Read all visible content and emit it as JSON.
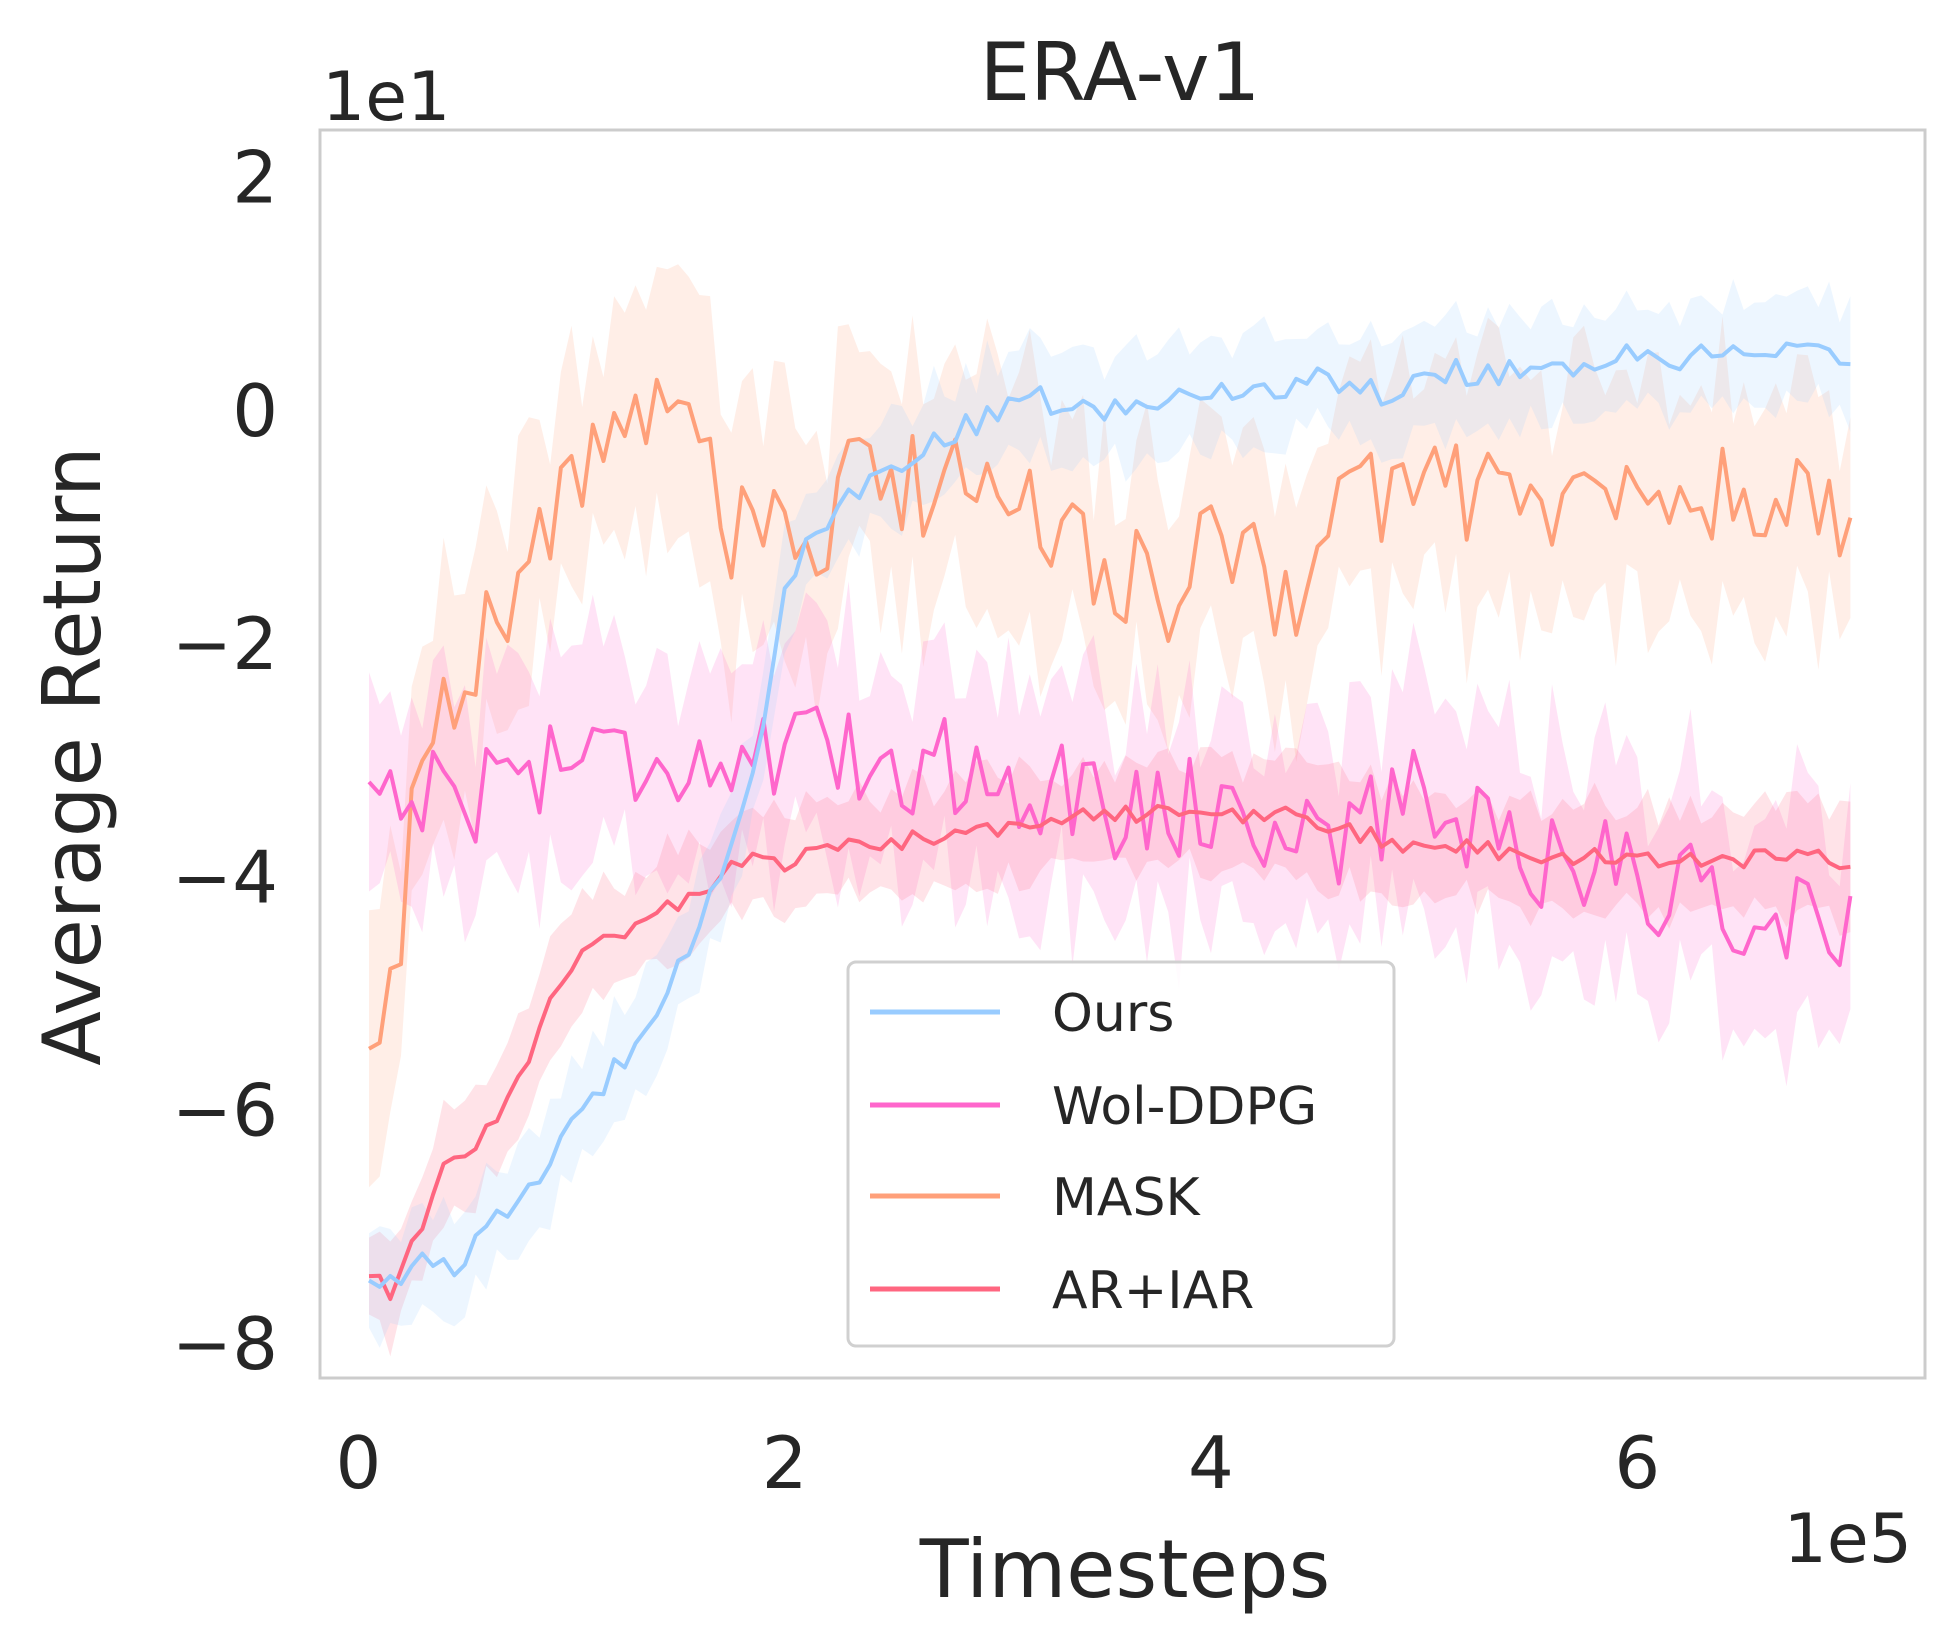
{
  "chart_data": {
    "type": "line",
    "title": "ERA-v1",
    "xlabel": "Timesteps",
    "ylabel": "Average Return",
    "x_multiplier_label": "1e5",
    "y_multiplier_label": "1e1",
    "xlim": [
      -0.18,
      7.35
    ],
    "ylim": [
      -8.3,
      2.4
    ],
    "x_ticks": [
      0,
      2,
      4,
      6
    ],
    "y_ticks": [
      -8,
      -6,
      -4,
      -2,
      0,
      2
    ],
    "x_tick_labels": [
      "0",
      "2",
      "4",
      "6"
    ],
    "y_tick_labels": [
      "−8",
      "−6",
      "−4",
      "−2",
      "0",
      "2"
    ],
    "grid": false,
    "legend_position": "lower-center",
    "x_range": [
      0.05,
      7.0
    ],
    "series": [
      {
        "name": "Ours",
        "color": "#99ccff",
        "band": 0.45,
        "keypoints": [
          [
            0.05,
            -7.45
          ],
          [
            0.3,
            -7.35
          ],
          [
            0.5,
            -7.3
          ],
          [
            0.7,
            -6.85
          ],
          [
            0.9,
            -6.45
          ],
          [
            1.1,
            -5.9
          ],
          [
            1.3,
            -5.4
          ],
          [
            1.5,
            -4.75
          ],
          [
            1.7,
            -4.0
          ],
          [
            1.8,
            -3.4
          ],
          [
            1.9,
            -2.7
          ],
          [
            2.0,
            -1.5
          ],
          [
            2.2,
            -0.95
          ],
          [
            2.4,
            -0.65
          ],
          [
            2.6,
            -0.35
          ],
          [
            2.8,
            -0.2
          ],
          [
            3.0,
            -0.05
          ],
          [
            3.2,
            0.1
          ],
          [
            3.5,
            -0.05
          ],
          [
            3.8,
            0.1
          ],
          [
            4.0,
            0.15
          ],
          [
            4.5,
            0.25
          ],
          [
            4.8,
            0.15
          ],
          [
            5.0,
            0.3
          ],
          [
            5.5,
            0.35
          ],
          [
            6.0,
            0.45
          ],
          [
            6.5,
            0.45
          ],
          [
            7.0,
            0.45
          ]
        ]
      },
      {
        "name": "Wol-DDPG",
        "color": "#ff66cc",
        "band": 0.9,
        "keypoints": [
          [
            0.05,
            -3.2
          ],
          [
            0.5,
            -3.3
          ],
          [
            1.0,
            -2.9
          ],
          [
            1.5,
            -3.0
          ],
          [
            2.0,
            -3.0
          ],
          [
            2.5,
            -3.0
          ],
          [
            3.0,
            -3.1
          ],
          [
            3.5,
            -3.4
          ],
          [
            4.0,
            -3.4
          ],
          [
            4.5,
            -3.7
          ],
          [
            5.0,
            -3.3
          ],
          [
            5.5,
            -3.8
          ],
          [
            6.0,
            -4.0
          ],
          [
            6.5,
            -4.3
          ],
          [
            7.0,
            -4.5
          ]
        ]
      },
      {
        "name": "MASK",
        "color": "#ffa07a",
        "band": 1.0,
        "keypoints": [
          [
            0.05,
            -5.55
          ],
          [
            0.1,
            -5.6
          ],
          [
            0.2,
            -4.6
          ],
          [
            0.25,
            -2.9
          ],
          [
            0.4,
            -2.5
          ],
          [
            0.6,
            -1.9
          ],
          [
            0.8,
            -1.35
          ],
          [
            1.0,
            -0.6
          ],
          [
            1.2,
            -0.1
          ],
          [
            1.4,
            -0.15
          ],
          [
            1.6,
            0.1
          ],
          [
            1.7,
            -1.0
          ],
          [
            1.9,
            -1.0
          ],
          [
            2.1,
            -1.5
          ],
          [
            2.3,
            -0.6
          ],
          [
            2.5,
            -0.6
          ],
          [
            2.7,
            -0.7
          ],
          [
            3.0,
            -0.5
          ],
          [
            3.2,
            -0.9
          ],
          [
            3.4,
            -1.2
          ],
          [
            3.6,
            -1.4
          ],
          [
            3.8,
            -1.6
          ],
          [
            4.0,
            -1.2
          ],
          [
            4.3,
            -1.5
          ],
          [
            4.4,
            -1.5
          ],
          [
            4.6,
            -0.85
          ],
          [
            5.0,
            -0.6
          ],
          [
            5.5,
            -0.8
          ],
          [
            6.0,
            -0.75
          ],
          [
            6.5,
            -0.75
          ],
          [
            7.0,
            -0.9
          ]
        ]
      },
      {
        "name": "AR+IAR",
        "color": "#ff6680",
        "band": 0.45,
        "keypoints": [
          [
            0.05,
            -7.45
          ],
          [
            0.15,
            -7.55
          ],
          [
            0.3,
            -7.0
          ],
          [
            0.4,
            -6.5
          ],
          [
            0.6,
            -6.2
          ],
          [
            0.8,
            -5.6
          ],
          [
            0.9,
            -5.05
          ],
          [
            1.0,
            -4.75
          ],
          [
            1.2,
            -4.5
          ],
          [
            1.4,
            -4.3
          ],
          [
            1.6,
            -4.15
          ],
          [
            1.8,
            -3.85
          ],
          [
            2.0,
            -3.9
          ],
          [
            2.2,
            -3.75
          ],
          [
            2.5,
            -3.7
          ],
          [
            2.8,
            -3.65
          ],
          [
            3.0,
            -3.6
          ],
          [
            3.5,
            -3.45
          ],
          [
            4.0,
            -3.5
          ],
          [
            4.3,
            -3.45
          ],
          [
            4.6,
            -3.6
          ],
          [
            5.0,
            -3.75
          ],
          [
            5.5,
            -3.8
          ],
          [
            6.0,
            -3.85
          ],
          [
            6.5,
            -3.85
          ],
          [
            7.0,
            -3.85
          ]
        ]
      }
    ]
  }
}
